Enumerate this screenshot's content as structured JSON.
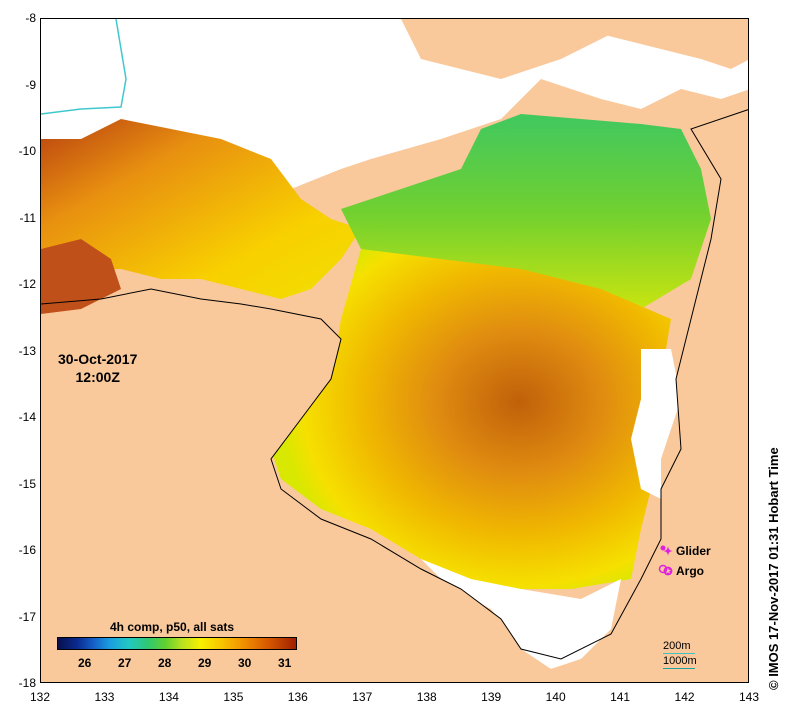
{
  "map": {
    "land_color": "#f9c89b",
    "x_ticks": [
      "132",
      "133",
      "134",
      "135",
      "136",
      "137",
      "138",
      "139",
      "140",
      "141",
      "142",
      "143"
    ],
    "y_ticks": [
      "-8",
      "-9",
      "-10",
      "-11",
      "-12",
      "-13",
      "-14",
      "-15",
      "-16",
      "-17",
      "-18"
    ],
    "x_range": [
      132,
      143
    ],
    "y_range": [
      -18,
      -8
    ]
  },
  "date": {
    "day": "30-Oct-2017",
    "time": "12:00Z"
  },
  "colorbar": {
    "title": "4h comp, p50, all sats",
    "labels": [
      "26",
      "27",
      "28",
      "29",
      "30",
      "31"
    ],
    "range": [
      25.3,
      31.3
    ]
  },
  "legend": {
    "items": [
      {
        "symbol": "✦",
        "label": "Glider"
      },
      {
        "symbol": "✪",
        "label": "Argo"
      }
    ]
  },
  "scale": {
    "depth1": "200m",
    "depth2": "1000m"
  },
  "credit": "© IMOS 17-Nov-2017 01:31 Hobart Time"
}
